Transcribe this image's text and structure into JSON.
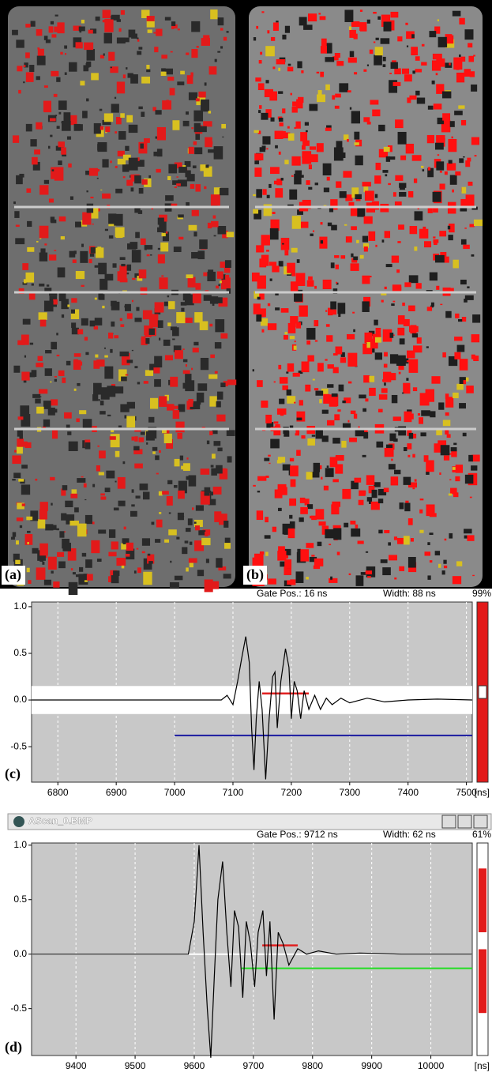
{
  "images": [
    {
      "label": "(a)"
    },
    {
      "label": "(b)"
    }
  ],
  "chart_data": [
    {
      "type": "line",
      "panel_label": "(c)",
      "gate_label": "Gate Pos.: 16 ns",
      "width_label": "Width: 88 ns",
      "amplitude_label": "99%",
      "x_unit": "[ns]",
      "xlim": [
        6755,
        7510
      ],
      "xticks": [
        6800,
        6900,
        7000,
        7100,
        7200,
        7300,
        7400,
        7500
      ],
      "ylim": [
        -0.88,
        1.05
      ],
      "yticks": [
        {
          "value": -0.5,
          "label": "-0.5"
        },
        {
          "value": 0,
          "label": "0.0"
        },
        0.5,
        {
          "value": 1,
          "label": "1.0"
        }
      ],
      "grid": true,
      "band": [
        -0.15,
        0.15
      ],
      "series": [
        {
          "color": "#000000",
          "x": [
            6755,
            7080,
            7090,
            7100,
            7108,
            7115,
            7122,
            7128,
            7132,
            7136,
            7140,
            7145,
            7150,
            7156,
            7162,
            7168,
            7172,
            7176,
            7182,
            7190,
            7196,
            7200,
            7205,
            7210,
            7216,
            7222,
            7230,
            7240,
            7250,
            7260,
            7270,
            7285,
            7300,
            7330,
            7360,
            7400,
            7450,
            7510
          ],
          "values": [
            0,
            0,
            0.05,
            -0.05,
            0.2,
            0.45,
            0.68,
            0.4,
            -0.3,
            -0.75,
            -0.2,
            0.2,
            -0.1,
            -0.85,
            -0.2,
            0.25,
            0.3,
            -0.3,
            0.2,
            0.55,
            0.35,
            -0.2,
            0.2,
            0.1,
            -0.2,
            0.1,
            -0.1,
            0.05,
            -0.1,
            0.02,
            -0.05,
            0.02,
            -0.03,
            0.02,
            -0.02,
            0,
            0.01,
            0
          ]
        }
      ],
      "gate": {
        "x": [
          7150,
          7230
        ],
        "y": 0.07,
        "color": "#e02020"
      },
      "threshold": {
        "x": [
          7000,
          7510
        ],
        "y": -0.38,
        "color": "#1a1aa0"
      }
    },
    {
      "type": "line",
      "panel_label": "(d)",
      "window_title": "AScan_0.BMP",
      "gate_label": "Gate Pos.: 9712 ns",
      "width_label": "Width: 62 ns",
      "amplitude_label": "61%",
      "x_unit": "[ns]",
      "xlim": [
        9325,
        10070
      ],
      "xticks": [
        9400,
        9500,
        9600,
        9700,
        9800,
        9900,
        10000
      ],
      "ylim": [
        -0.93,
        1.02
      ],
      "yticks": [
        {
          "value": -0.5,
          "label": "-0.5"
        },
        {
          "value": 0,
          "label": "0.0"
        },
        0.5,
        {
          "value": 1,
          "label": "1.0"
        }
      ],
      "grid": true,
      "band": [
        0,
        0
      ],
      "series": [
        {
          "color": "#000000",
          "x": [
            9325,
            9590,
            9600,
            9608,
            9615,
            9622,
            9628,
            9634,
            9640,
            9648,
            9655,
            9662,
            9668,
            9675,
            9682,
            9688,
            9695,
            9702,
            9708,
            9716,
            9722,
            9728,
            9735,
            9742,
            9750,
            9760,
            9775,
            9790,
            9810,
            9840,
            9880,
            9950,
            10070
          ],
          "values": [
            0,
            0,
            0.3,
            1.0,
            0.2,
            -0.5,
            -0.95,
            -0.2,
            0.5,
            0.85,
            0.2,
            -0.3,
            0.4,
            0.25,
            -0.4,
            0.3,
            0.1,
            -0.3,
            0.2,
            0.4,
            -0.2,
            0.3,
            -0.6,
            0.2,
            0.1,
            -0.1,
            0.05,
            0,
            0.03,
            0,
            0.01,
            0,
            0
          ]
        }
      ],
      "gate": {
        "x": [
          9715,
          9775
        ],
        "y": 0.08,
        "color": "#e02020"
      },
      "threshold": {
        "x": [
          9680,
          10070
        ],
        "y": -0.13,
        "color": "#22dd22"
      }
    }
  ]
}
